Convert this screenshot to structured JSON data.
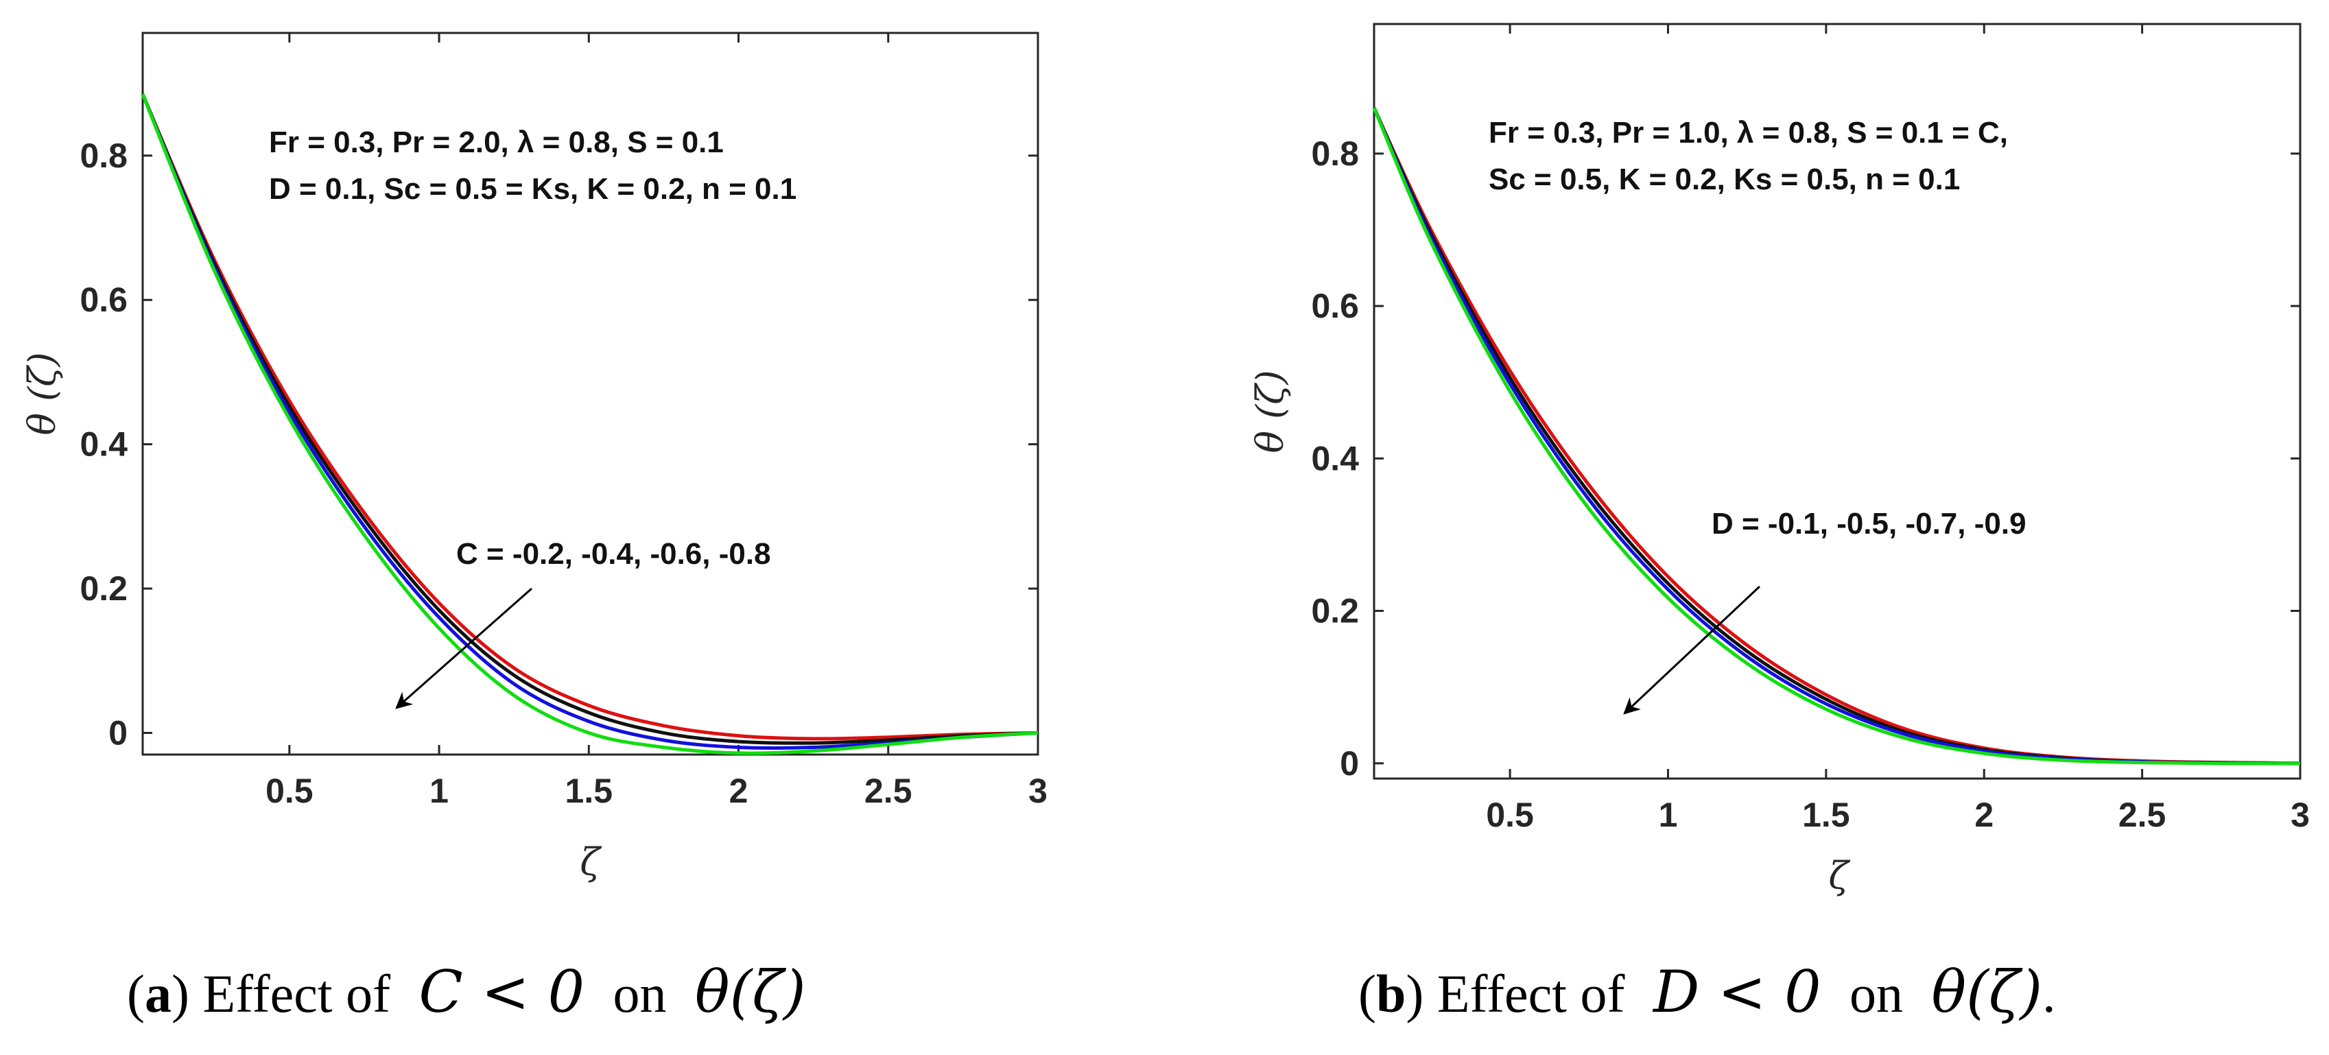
{
  "chart_data": [
    {
      "id": "a",
      "type": "line",
      "xlabel": "ζ",
      "ylabel": "θ (ζ)",
      "xlim": [
        0.01,
        3
      ],
      "ylim": [
        -0.03,
        0.97
      ],
      "xticks": [
        0.5,
        1,
        1.5,
        2,
        2.5,
        3
      ],
      "xtick_labels": [
        "0.5",
        "1",
        "1.5",
        "2",
        "2.5",
        "3"
      ],
      "yticks": [
        0,
        0.2,
        0.4,
        0.6,
        0.8
      ],
      "ytick_labels": [
        "0",
        "0.2",
        "0.4",
        "0.6",
        "0.8"
      ],
      "params_line1": "Fr = 0.3, Pr = 2.0, λ = 0.8, S = 0.1",
      "params_line2": "D = 0.1, Sc = 0.5 = Ks, K = 0.2, n = 0.1",
      "arrow_label": "C = -0.2, -0.4, -0.6, -0.8",
      "x": [
        0.01,
        0.25,
        0.5,
        0.75,
        1.0,
        1.25,
        1.5,
        1.75,
        2.0,
        2.25,
        2.5,
        2.75,
        3.0
      ],
      "series": [
        {
          "name": "C = -0.2",
          "color": "#dd1111",
          "values": [
            0.885,
            0.655,
            0.46,
            0.305,
            0.18,
            0.09,
            0.038,
            0.01,
            -0.004,
            -0.008,
            -0.006,
            -0.002,
            0.0
          ]
        },
        {
          "name": "C = -0.4",
          "color": "#111111",
          "values": [
            0.885,
            0.65,
            0.452,
            0.296,
            0.17,
            0.08,
            0.028,
            0.0,
            -0.012,
            -0.014,
            -0.01,
            -0.004,
            0.0
          ]
        },
        {
          "name": "C = -0.6",
          "color": "#1111dd",
          "values": [
            0.885,
            0.645,
            0.444,
            0.286,
            0.16,
            0.068,
            0.016,
            -0.01,
            -0.02,
            -0.02,
            -0.014,
            -0.006,
            0.0
          ]
        },
        {
          "name": "C = -0.8",
          "color": "#11dd11",
          "values": [
            0.885,
            0.64,
            0.435,
            0.274,
            0.145,
            0.052,
            0.0,
            -0.02,
            -0.028,
            -0.025,
            -0.016,
            -0.006,
            0.0
          ]
        }
      ],
      "caption": {
        "label": "a",
        "text": " Effect of ",
        "math1": "C < 0",
        "mid": " on ",
        "math2": "θ(ζ)",
        "end": ""
      }
    },
    {
      "id": "b",
      "type": "line",
      "xlabel": "ζ",
      "ylabel": "θ (ζ)",
      "xlim": [
        0.07,
        3
      ],
      "ylim": [
        -0.02,
        0.97
      ],
      "xticks": [
        0.5,
        1,
        1.5,
        2,
        2.5,
        3
      ],
      "xtick_labels": [
        "0.5",
        "1",
        "1.5",
        "2",
        "2.5",
        "3"
      ],
      "yticks": [
        0,
        0.2,
        0.4,
        0.6,
        0.8
      ],
      "ytick_labels": [
        "0",
        "0.2",
        "0.4",
        "0.6",
        "0.8"
      ],
      "params_line1": "Fr = 0.3, Pr = 1.0, λ = 0.8, S = 0.1 = C,",
      "params_line2": "Sc = 0.5, K = 0.2, Ks = 0.5, n = 0.1",
      "arrow_label": "D = -0.1, -0.5, -0.7, -0.9",
      "x": [
        0.07,
        0.25,
        0.5,
        0.75,
        1.0,
        1.25,
        1.5,
        1.75,
        2.0,
        2.25,
        2.5,
        2.75,
        3.0
      ],
      "series": [
        {
          "name": "D = -0.1",
          "color": "#dd1111",
          "values": [
            0.86,
            0.7,
            0.515,
            0.365,
            0.245,
            0.155,
            0.09,
            0.045,
            0.02,
            0.008,
            0.003,
            0.001,
            0.0
          ]
        },
        {
          "name": "D = -0.5",
          "color": "#111111",
          "values": [
            0.86,
            0.695,
            0.506,
            0.355,
            0.236,
            0.147,
            0.084,
            0.041,
            0.018,
            0.007,
            0.002,
            0.001,
            0.0
          ]
        },
        {
          "name": "D = -0.7",
          "color": "#1111dd",
          "values": [
            0.86,
            0.69,
            0.498,
            0.346,
            0.228,
            0.14,
            0.078,
            0.038,
            0.016,
            0.006,
            0.002,
            0.0,
            0.0
          ]
        },
        {
          "name": "D = -0.9",
          "color": "#11dd11",
          "values": [
            0.86,
            0.684,
            0.488,
            0.334,
            0.217,
            0.131,
            0.071,
            0.033,
            0.013,
            0.004,
            0.001,
            0.0,
            0.0
          ]
        }
      ],
      "caption": {
        "label": "b",
        "text": " Effect of ",
        "math1": "D < 0",
        "mid": " on ",
        "math2": "θ(ζ)",
        "end": "."
      }
    }
  ]
}
